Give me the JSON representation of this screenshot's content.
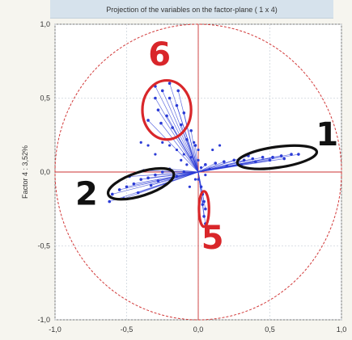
{
  "chart_data": {
    "type": "scatter",
    "title": "Projection of the variables on the factor-plane ( 1 x  4)",
    "ylabel": "Factor 4 : 3,52%",
    "xlabel": "",
    "xlim": [
      -1.0,
      1.0
    ],
    "ylim": [
      -1.0,
      1.0
    ],
    "x_ticks": [
      "-1,0",
      "-0,5",
      "0,0",
      "0,5",
      "1,0"
    ],
    "y_ticks": [
      "1,0",
      "0,5",
      "0,0",
      "-0,5",
      "-1,0"
    ],
    "grid": true,
    "unit_circle": true,
    "colors": {
      "points": "#2b3bd6",
      "circle": "#d23a3a",
      "axes": "#cc3333",
      "annot_red": "#d9262a",
      "annot_black": "#111111"
    },
    "groups": [
      {
        "label": "1",
        "color": "#111111",
        "ellipse": {
          "cx": 0.55,
          "cy": 0.1,
          "rx": 0.28,
          "ry": 0.07,
          "angle": -8
        },
        "points": [
          [
            0.05,
            0.05
          ],
          [
            0.12,
            0.06
          ],
          [
            0.18,
            0.07
          ],
          [
            0.25,
            0.08
          ],
          [
            0.32,
            0.08
          ],
          [
            0.38,
            0.09
          ],
          [
            0.45,
            0.1
          ],
          [
            0.52,
            0.1
          ],
          [
            0.58,
            0.11
          ],
          [
            0.65,
            0.12
          ],
          [
            0.7,
            0.12
          ],
          [
            0.3,
            0.05
          ],
          [
            0.4,
            0.07
          ],
          [
            0.5,
            0.08
          ],
          [
            0.2,
            0.04
          ],
          [
            0.35,
            0.11
          ],
          [
            0.6,
            0.09
          ]
        ]
      },
      {
        "label": "2",
        "color": "#111111",
        "ellipse": {
          "cx": -0.4,
          "cy": -0.08,
          "rx": 0.24,
          "ry": 0.08,
          "angle": -18
        },
        "points": [
          [
            -0.6,
            -0.15
          ],
          [
            -0.55,
            -0.12
          ],
          [
            -0.5,
            -0.1
          ],
          [
            -0.45,
            -0.08
          ],
          [
            -0.4,
            -0.05
          ],
          [
            -0.35,
            -0.04
          ],
          [
            -0.3,
            -0.02
          ],
          [
            -0.25,
            0.0
          ],
          [
            -0.2,
            0.02
          ],
          [
            -0.52,
            -0.18
          ],
          [
            -0.42,
            -0.14
          ],
          [
            -0.33,
            -0.09
          ],
          [
            -0.48,
            -0.03
          ],
          [
            -0.38,
            0.01
          ],
          [
            -0.28,
            -0.06
          ],
          [
            -0.62,
            -0.2
          ],
          [
            -0.15,
            -0.03
          ],
          [
            -0.1,
            0.0
          ]
        ]
      },
      {
        "label": "5",
        "color": "#d9262a",
        "ellipse": {
          "cx": 0.04,
          "cy": -0.25,
          "rx": 0.035,
          "ry": 0.12,
          "angle": 0
        },
        "points": [
          [
            0.03,
            -0.15
          ],
          [
            0.04,
            -0.2
          ],
          [
            0.05,
            -0.25
          ],
          [
            0.04,
            -0.3
          ],
          [
            0.05,
            -0.35
          ],
          [
            0.03,
            -0.22
          ],
          [
            0.02,
            -0.1
          ]
        ]
      },
      {
        "label": "6",
        "color": "#d9262a",
        "ellipse": {
          "cx": -0.22,
          "cy": 0.42,
          "rx": 0.17,
          "ry": 0.2,
          "angle": 0
        },
        "points": [
          [
            -0.3,
            0.5
          ],
          [
            -0.25,
            0.55
          ],
          [
            -0.2,
            0.5
          ],
          [
            -0.15,
            0.45
          ],
          [
            -0.1,
            0.4
          ],
          [
            -0.28,
            0.42
          ],
          [
            -0.22,
            0.38
          ],
          [
            -0.12,
            0.32
          ],
          [
            -0.05,
            0.28
          ],
          [
            -0.18,
            0.3
          ],
          [
            -0.35,
            0.35
          ],
          [
            -0.08,
            0.22
          ],
          [
            -0.02,
            0.18
          ],
          [
            -0.3,
            0.58
          ],
          [
            -0.2,
            0.6
          ],
          [
            -0.14,
            0.55
          ],
          [
            -0.26,
            0.33
          ]
        ]
      }
    ],
    "other_points": [
      [
        -0.05,
        0.1
      ],
      [
        0.0,
        0.08
      ],
      [
        -0.1,
        0.12
      ],
      [
        -0.15,
        0.15
      ],
      [
        -0.2,
        0.18
      ],
      [
        -0.25,
        0.2
      ],
      [
        0.05,
        -0.02
      ],
      [
        -0.02,
        -0.05
      ],
      [
        0.08,
        0.02
      ],
      [
        -0.08,
        0.05
      ],
      [
        -0.12,
        0.08
      ],
      [
        0.0,
        0.15
      ],
      [
        -0.03,
        0.2
      ],
      [
        0.1,
        0.15
      ],
      [
        0.15,
        0.18
      ],
      [
        -0.35,
        0.18
      ],
      [
        -0.4,
        0.2
      ],
      [
        -0.3,
        0.12
      ],
      [
        0.02,
        0.03
      ],
      [
        -0.06,
        -0.1
      ],
      [
        0.0,
        -0.05
      ]
    ],
    "annotations": [
      {
        "text": "6",
        "x": -0.27,
        "y": 0.72,
        "color": "#d9262a"
      },
      {
        "text": "1",
        "x": 0.9,
        "y": 0.18,
        "color": "#111111"
      },
      {
        "text": "2",
        "x": -0.78,
        "y": -0.22,
        "color": "#111111"
      },
      {
        "text": "5",
        "x": 0.1,
        "y": -0.52,
        "color": "#d9262a"
      }
    ]
  }
}
